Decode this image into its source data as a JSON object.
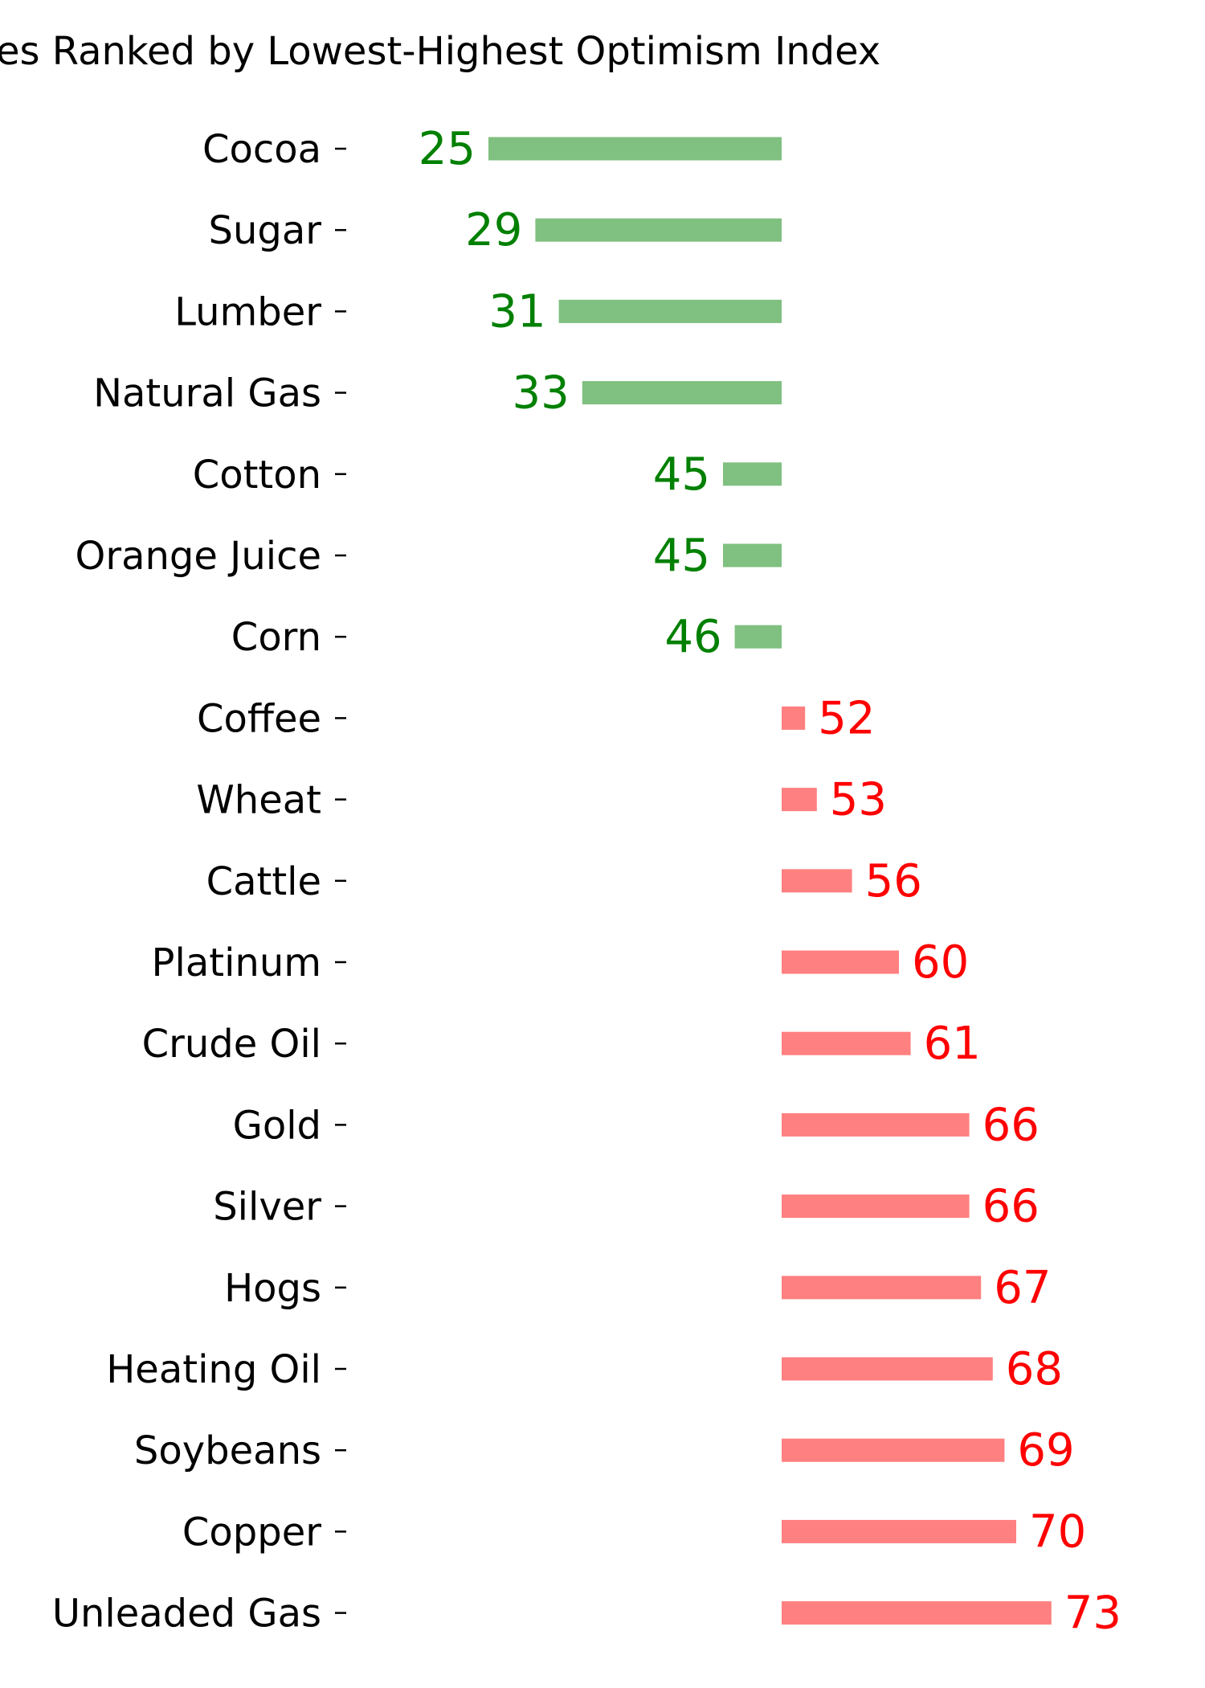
{
  "chart_data": {
    "type": "bar",
    "orientation": "horizontal",
    "title": "es Ranked by Lowest-Highest Optimism Index",
    "xlabel": "",
    "ylabel": "",
    "baseline": 50,
    "grid": false,
    "legend": "none",
    "categories": [
      "Cocoa",
      "Sugar",
      "Lumber",
      "Natural Gas",
      "Cotton",
      "Orange Juice",
      "Corn",
      "Coffee",
      "Wheat",
      "Cattle",
      "Platinum",
      "Crude Oil",
      "Gold",
      "Silver",
      "Hogs",
      "Heating Oil",
      "Soybeans",
      "Copper",
      "Unleaded Gas"
    ],
    "values": [
      25,
      29,
      31,
      33,
      45,
      45,
      46,
      52,
      53,
      56,
      60,
      61,
      66,
      66,
      67,
      68,
      69,
      70,
      73
    ],
    "colors": {
      "below_bar": "#80c080",
      "below_text": "#008000",
      "above_bar": "#ff8080",
      "above_text": "#ff0000"
    }
  }
}
